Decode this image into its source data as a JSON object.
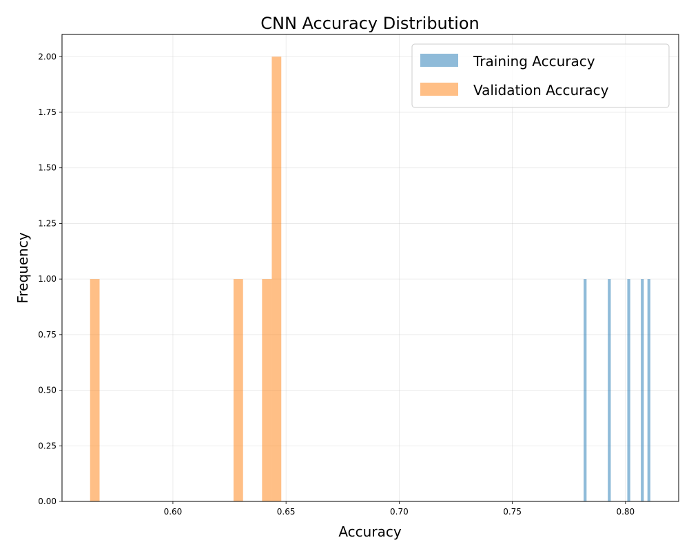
{
  "chart_data": {
    "type": "bar",
    "title": "CNN Accuracy Distribution",
    "xlabel": "Accuracy",
    "ylabel": "Frequency",
    "xlim": [
      0.551,
      0.8235
    ],
    "ylim": [
      0,
      2.1
    ],
    "xticks": [
      0.6,
      0.65,
      0.7,
      0.75,
      0.8
    ],
    "xtick_labels": [
      "0.60",
      "0.65",
      "0.70",
      "0.75",
      "0.80"
    ],
    "yticks": [
      0.0,
      0.25,
      0.5,
      0.75,
      1.0,
      1.25,
      1.5,
      1.75,
      2.0
    ],
    "ytick_labels": [
      "0.00",
      "0.25",
      "0.50",
      "0.75",
      "1.00",
      "1.25",
      "1.50",
      "1.75",
      "2.00"
    ],
    "grid": true,
    "legend_position": "top-right",
    "series": [
      {
        "name": "Training Accuracy",
        "color": "#1f77b4",
        "opacity": 0.5,
        "bins": [
          {
            "x0": 0.7815,
            "x1": 0.7828,
            "count": 1
          },
          {
            "x0": 0.7922,
            "x1": 0.7935,
            "count": 1
          },
          {
            "x0": 0.8008,
            "x1": 0.8021,
            "count": 1
          },
          {
            "x0": 0.8068,
            "x1": 0.8081,
            "count": 1
          },
          {
            "x0": 0.8097,
            "x1": 0.811,
            "count": 1
          }
        ]
      },
      {
        "name": "Validation Accuracy",
        "color": "#ff7f0e",
        "opacity": 0.5,
        "bins": [
          {
            "x0": 0.5634,
            "x1": 0.5676,
            "count": 1
          },
          {
            "x0": 0.6268,
            "x1": 0.631,
            "count": 1
          },
          {
            "x0": 0.6394,
            "x1": 0.6437,
            "count": 1
          },
          {
            "x0": 0.6437,
            "x1": 0.6479,
            "count": 2
          }
        ]
      }
    ]
  }
}
